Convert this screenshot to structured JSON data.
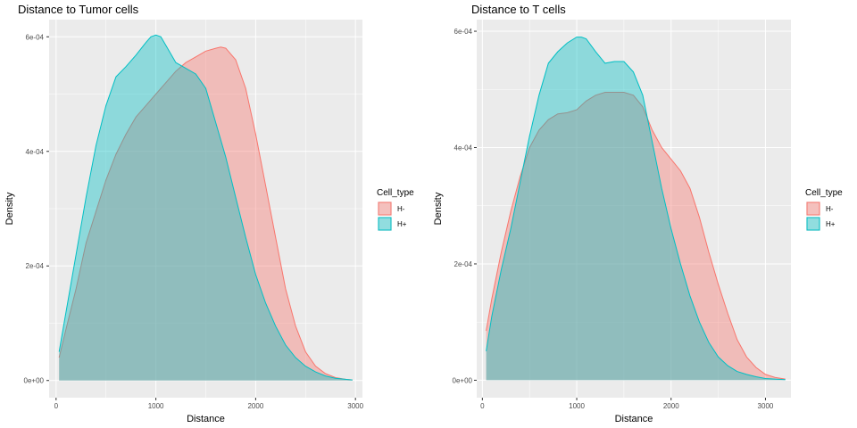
{
  "chart_data": [
    {
      "type": "area",
      "title": "Distance to Tumor cells",
      "xlabel": "Distance",
      "ylabel": "Density",
      "xlim": [
        -70,
        3070
      ],
      "ylim": [
        -3e-05,
        0.00063
      ],
      "xticks": [
        0,
        1000,
        2000,
        3000
      ],
      "xtick_labels": [
        "0",
        "1000",
        "2000",
        "3000"
      ],
      "yticks": [
        0,
        0.0002,
        0.0004,
        0.0006
      ],
      "ytick_labels": [
        "0e+00",
        "2e-04",
        "4e-04",
        "6e-04"
      ],
      "grid": true,
      "legend": {
        "title": "Cell_type",
        "position": "right"
      },
      "series": [
        {
          "name": "H-",
          "color": "#F8766D",
          "fill_opacity": 0.4,
          "x": [
            30,
            100,
            200,
            300,
            400,
            500,
            600,
            700,
            800,
            900,
            1000,
            1100,
            1200,
            1300,
            1400,
            1500,
            1600,
            1650,
            1700,
            1800,
            1900,
            2000,
            2100,
            2200,
            2300,
            2400,
            2500,
            2600,
            2700,
            2800,
            2900,
            2970
          ],
          "y": [
            4e-05,
            9e-05,
            0.00016,
            0.00024,
            0.000295,
            0.00035,
            0.000395,
            0.00043,
            0.00046,
            0.00048,
            0.0005,
            0.00052,
            0.00054,
            0.000555,
            0.000565,
            0.000575,
            0.00058,
            0.000582,
            0.00058,
            0.00056,
            0.00051,
            0.00043,
            0.00034,
            0.00025,
            0.00016,
            9.5e-05,
            5e-05,
            2.5e-05,
            1.2e-05,
            5e-06,
            2e-06,
            1e-06
          ]
        },
        {
          "name": "H+",
          "color": "#00BFC4",
          "fill_opacity": 0.4,
          "x": [
            30,
            100,
            200,
            300,
            400,
            500,
            600,
            700,
            800,
            900,
            950,
            1000,
            1050,
            1100,
            1200,
            1300,
            1400,
            1500,
            1600,
            1700,
            1800,
            1900,
            2000,
            2100,
            2200,
            2300,
            2400,
            2500,
            2600,
            2700,
            2800,
            2900,
            2970
          ],
          "y": [
            5e-05,
            0.00012,
            0.00022,
            0.00032,
            0.00041,
            0.00048,
            0.00053,
            0.000548,
            0.000568,
            0.00059,
            0.0006,
            0.000603,
            0.0006,
            0.000585,
            0.000555,
            0.000545,
            0.000535,
            0.00051,
            0.00045,
            0.00039,
            0.00032,
            0.00025,
            0.000185,
            0.000135,
            9.5e-05,
            6.2e-05,
            4e-05,
            2.5e-05,
            1.5e-05,
            8e-06,
            4e-06,
            2e-06,
            1e-06
          ]
        }
      ]
    },
    {
      "type": "area",
      "title": "Distance to T cells",
      "xlabel": "Distance",
      "ylabel": "Density",
      "xlim": [
        -60,
        3270
      ],
      "ylim": [
        -3e-05,
        0.00062
      ],
      "xticks": [
        0,
        1000,
        2000,
        3000
      ],
      "xtick_labels": [
        "0",
        "1000",
        "2000",
        "3000"
      ],
      "yticks": [
        0,
        0.0002,
        0.0004,
        0.0006
      ],
      "ytick_labels": [
        "0e+00",
        "2e-04",
        "4e-04",
        "6e-04"
      ],
      "grid": true,
      "legend": {
        "title": "Cell_type",
        "position": "right"
      },
      "series": [
        {
          "name": "H-",
          "color": "#F8766D",
          "fill_opacity": 0.4,
          "x": [
            40,
            100,
            200,
            300,
            400,
            500,
            600,
            700,
            800,
            900,
            1000,
            1100,
            1200,
            1300,
            1400,
            1500,
            1600,
            1700,
            1800,
            1900,
            2000,
            2100,
            2200,
            2300,
            2400,
            2500,
            2600,
            2700,
            2800,
            2900,
            3000,
            3100,
            3210
          ],
          "y": [
            8.5e-05,
            0.00014,
            0.00022,
            0.00029,
            0.00035,
            0.0004,
            0.00043,
            0.000448,
            0.000458,
            0.00046,
            0.000465,
            0.00048,
            0.00049,
            0.000495,
            0.000495,
            0.000495,
            0.00049,
            0.00047,
            0.00043,
            0.0004,
            0.00038,
            0.00036,
            0.00033,
            0.00028,
            0.00022,
            0.000165,
            0.000115,
            7e-05,
            4e-05,
            2.2e-05,
            1e-05,
            5e-06,
            2e-06
          ]
        },
        {
          "name": "H+",
          "color": "#00BFC4",
          "fill_opacity": 0.4,
          "x": [
            40,
            100,
            200,
            300,
            400,
            500,
            600,
            700,
            800,
            900,
            1000,
            1050,
            1100,
            1200,
            1300,
            1400,
            1500,
            1600,
            1700,
            1800,
            1900,
            2000,
            2100,
            2200,
            2300,
            2400,
            2500,
            2600,
            2700,
            2800,
            2900,
            3000,
            3100,
            3210
          ],
          "y": [
            5e-05,
            0.00011,
            0.00019,
            0.00026,
            0.00034,
            0.00042,
            0.00049,
            0.000545,
            0.000565,
            0.00058,
            0.00059,
            0.00059,
            0.000587,
            0.000565,
            0.000545,
            0.000548,
            0.000548,
            0.00053,
            0.00049,
            0.00041,
            0.00033,
            0.00026,
            0.0002,
            0.000145,
            0.0001,
            6.5e-05,
            4e-05,
            2.5e-05,
            1.5e-05,
            1e-05,
            6e-06,
            3e-06,
            2e-06,
            1e-06
          ]
        }
      ]
    }
  ]
}
